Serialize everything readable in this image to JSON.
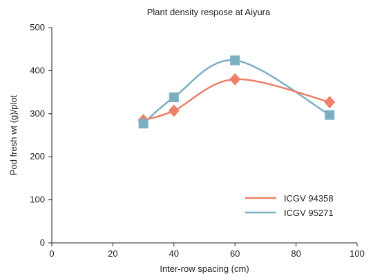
{
  "chart_data": {
    "type": "line",
    "title": "Plant density respose at Aiyura",
    "xlabel": "Inter-row spacing (cm)",
    "ylabel": "Pod fresh wt (g)/plot",
    "xlim": [
      0,
      100
    ],
    "ylim": [
      0,
      500
    ],
    "xticks": [
      0,
      20,
      40,
      60,
      80,
      100
    ],
    "yticks": [
      0,
      100,
      200,
      300,
      400,
      500
    ],
    "grid": false,
    "legend_position": "bottom-right",
    "series": [
      {
        "name": "ICGV 94358",
        "color": "#ee7f68",
        "marker": "diamond",
        "x": [
          30,
          40,
          60,
          91
        ],
        "y": [
          285,
          307,
          380,
          327
        ]
      },
      {
        "name": "ICGV 95271",
        "color": "#7aafc2",
        "marker": "square",
        "x": [
          30,
          40,
          60,
          91
        ],
        "y": [
          277,
          338,
          424,
          297
        ]
      }
    ]
  }
}
